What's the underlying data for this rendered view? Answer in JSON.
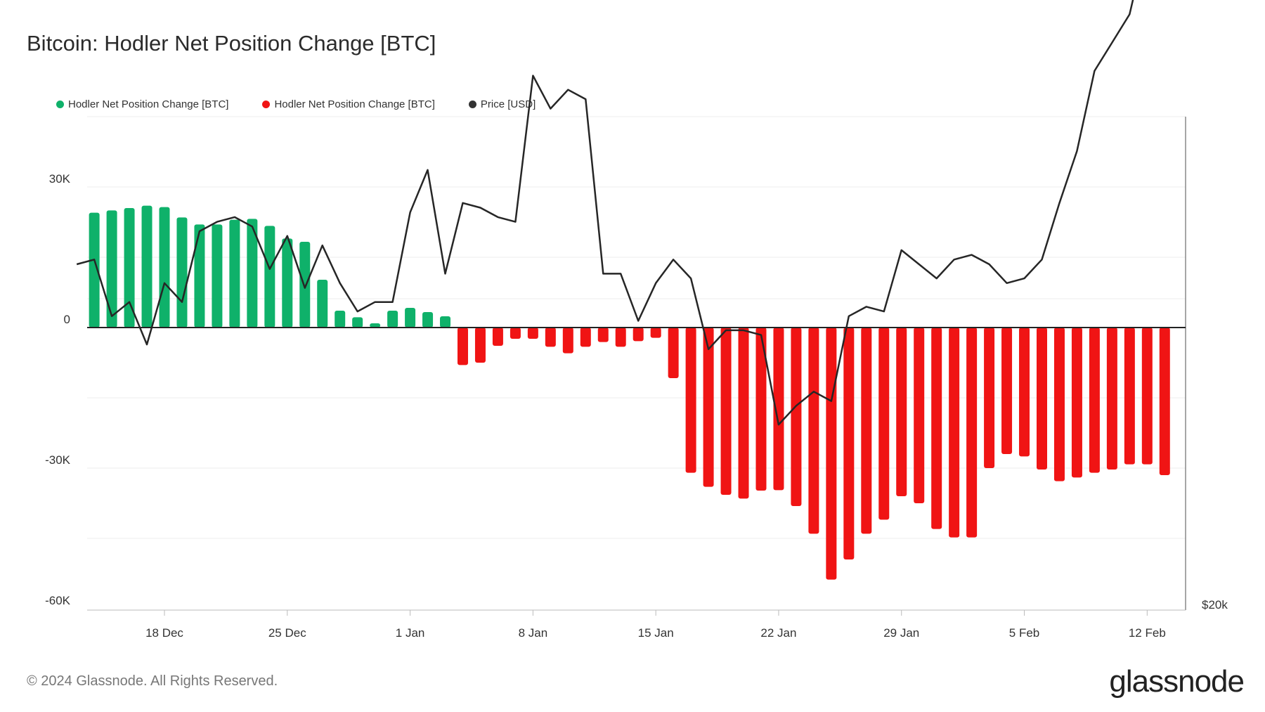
{
  "title": "Bitcoin: Hodler Net Position Change [BTC]",
  "legend": [
    {
      "label": "Hodler Net Position Change [BTC]",
      "color": "#0fb16a"
    },
    {
      "label": "Hodler Net Position Change [BTC]",
      "color": "#f01414"
    },
    {
      "label": "Price [USD]",
      "color": "#333333"
    }
  ],
  "footer": "© 2024 Glassnode. All Rights Reserved.",
  "brand": "glassnode",
  "chart_data": {
    "type": "bar",
    "x_ticks": [
      "18 Dec",
      "25 Dec",
      "1 Jan",
      "8 Jan",
      "15 Jan",
      "22 Jan",
      "29 Jan",
      "5 Feb",
      "12 Feb"
    ],
    "y_left_ticks": [
      "30K",
      "0",
      "-30K",
      "-60K"
    ],
    "y_right_tick": "$20k",
    "ylim": [
      -60000,
      40000
    ],
    "grid": "horizontal",
    "legend_position": "top-left",
    "colors": {
      "positive": "#0fb16a",
      "negative": "#f01414",
      "price": "#262626"
    },
    "series": [
      {
        "name": "Hodler Net Position Change [BTC]",
        "dates": [
          "2023-12-14",
          "2023-12-15",
          "2023-12-16",
          "2023-12-17",
          "2023-12-18",
          "2023-12-19",
          "2023-12-20",
          "2023-12-21",
          "2023-12-22",
          "2023-12-23",
          "2023-12-24",
          "2023-12-25",
          "2023-12-26",
          "2023-12-27",
          "2023-12-28",
          "2023-12-29",
          "2023-12-30",
          "2023-12-31",
          "2024-01-01",
          "2024-01-02",
          "2024-01-03",
          "2024-01-04",
          "2024-01-05",
          "2024-01-06",
          "2024-01-07",
          "2024-01-08",
          "2024-01-09",
          "2024-01-10",
          "2024-01-11",
          "2024-01-12",
          "2024-01-13",
          "2024-01-14",
          "2024-01-15",
          "2024-01-16",
          "2024-01-17",
          "2024-01-18",
          "2024-01-19",
          "2024-01-20",
          "2024-01-21",
          "2024-01-22",
          "2024-01-23",
          "2024-01-24",
          "2024-01-25",
          "2024-01-26",
          "2024-01-27",
          "2024-01-28",
          "2024-01-29",
          "2024-01-30",
          "2024-01-31",
          "2024-02-01",
          "2024-02-02",
          "2024-02-03",
          "2024-02-04",
          "2024-02-05",
          "2024-02-06",
          "2024-02-07",
          "2024-02-08",
          "2024-02-09",
          "2024-02-10",
          "2024-02-11",
          "2024-02-12",
          "2024-02-13"
        ],
        "values": [
          24500,
          25000,
          25500,
          26000,
          25700,
          23500,
          22000,
          22000,
          23000,
          23200,
          21700,
          19000,
          18300,
          10200,
          3600,
          2200,
          900,
          3600,
          4200,
          3300,
          2400,
          -8000,
          -7500,
          -3900,
          -2400,
          -2400,
          -4100,
          -5500,
          -4100,
          -3100,
          -4100,
          -2900,
          -2200,
          -10800,
          -31000,
          -34000,
          -35700,
          -36500,
          -34800,
          -34700,
          -38100,
          -44000,
          -53800,
          -49500,
          -44000,
          -41000,
          -36000,
          -37500,
          -43000,
          -44800,
          -44800,
          -30000,
          -27000,
          -27500,
          -30300,
          -32800,
          -32000,
          -31000,
          -30300,
          -29200,
          -29200,
          -31500
        ]
      },
      {
        "name": "Price [USD]",
        "dates": [
          "2023-12-13",
          "2023-12-14",
          "2023-12-15",
          "2023-12-16",
          "2023-12-17",
          "2023-12-18",
          "2023-12-19",
          "2023-12-20",
          "2023-12-21",
          "2023-12-22",
          "2023-12-23",
          "2023-12-24",
          "2023-12-25",
          "2023-12-26",
          "2023-12-27",
          "2023-12-28",
          "2023-12-29",
          "2023-12-30",
          "2023-12-31",
          "2024-01-01",
          "2024-01-02",
          "2024-01-03",
          "2024-01-04",
          "2024-01-05",
          "2024-01-06",
          "2024-01-07",
          "2024-01-08",
          "2024-01-09",
          "2024-01-10",
          "2024-01-11",
          "2024-01-12",
          "2024-01-13",
          "2024-01-14",
          "2024-01-15",
          "2024-01-16",
          "2024-01-17",
          "2024-01-18",
          "2024-01-19",
          "2024-01-20",
          "2024-01-21",
          "2024-01-22",
          "2024-01-23",
          "2024-01-24",
          "2024-01-25",
          "2024-01-26",
          "2024-01-27",
          "2024-01-28",
          "2024-01-29",
          "2024-01-30",
          "2024-01-31",
          "2024-02-01",
          "2024-02-02",
          "2024-02-03",
          "2024-02-04",
          "2024-02-05",
          "2024-02-06",
          "2024-02-07",
          "2024-02-08",
          "2024-02-09",
          "2024-02-10",
          "2024-02-11",
          "2024-02-12",
          "2024-02-13",
          "2024-02-14"
        ],
        "values": [
          43000,
          43100,
          41900,
          42200,
          41300,
          42600,
          42200,
          43700,
          43900,
          44000,
          43800,
          42900,
          43600,
          42500,
          43400,
          42600,
          42000,
          42200,
          42200,
          44100,
          45000,
          42800,
          44300,
          44200,
          44000,
          43900,
          47000,
          46300,
          46700,
          46500,
          42800,
          42800,
          41800,
          42600,
          43100,
          42700,
          41200,
          41600,
          41600,
          41500,
          39600,
          40000,
          40300,
          40100,
          41900,
          42100,
          42000,
          43300,
          43000,
          42700,
          43100,
          43200,
          43000,
          42600,
          42700,
          43100,
          44300,
          45400,
          47100,
          47700,
          48300,
          49900,
          49700,
          51800
        ]
      }
    ]
  }
}
